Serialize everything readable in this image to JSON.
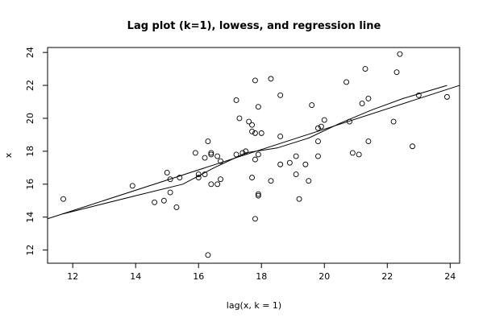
{
  "chart_data": {
    "type": "scatter",
    "title": "Lag plot (k=1), lowess, and regression line",
    "xlabel": "lag(x, k = 1)",
    "ylabel": "x",
    "xlim": [
      11.2,
      24.3
    ],
    "ylim": [
      11.2,
      24.3
    ],
    "xticks": [
      "12",
      "14",
      "16",
      "18",
      "20",
      "22",
      "24"
    ],
    "yticks": [
      "12",
      "14",
      "16",
      "18",
      "20",
      "22",
      "24"
    ],
    "points": [
      [
        11.7,
        15.1
      ],
      [
        13.9,
        15.9
      ],
      [
        14.6,
        14.9
      ],
      [
        14.9,
        15.0
      ],
      [
        15.0,
        16.7
      ],
      [
        15.1,
        16.3
      ],
      [
        15.1,
        15.5
      ],
      [
        15.3,
        14.6
      ],
      [
        15.4,
        16.4
      ],
      [
        15.9,
        17.9
      ],
      [
        16.0,
        16.6
      ],
      [
        16.0,
        16.4
      ],
      [
        16.2,
        16.6
      ],
      [
        16.2,
        17.6
      ],
      [
        16.3,
        18.6
      ],
      [
        16.3,
        11.7
      ],
      [
        16.4,
        17.8
      ],
      [
        16.4,
        17.9
      ],
      [
        16.4,
        16.0
      ],
      [
        16.6,
        16.0
      ],
      [
        16.6,
        17.7
      ],
      [
        16.7,
        17.4
      ],
      [
        16.7,
        16.3
      ],
      [
        17.2,
        21.1
      ],
      [
        17.2,
        17.8
      ],
      [
        17.3,
        20.0
      ],
      [
        17.4,
        17.9
      ],
      [
        17.5,
        18.0
      ],
      [
        17.6,
        19.8
      ],
      [
        17.7,
        19.2
      ],
      [
        17.7,
        19.6
      ],
      [
        17.7,
        16.4
      ],
      [
        17.8,
        22.3
      ],
      [
        17.8,
        19.1
      ],
      [
        17.8,
        17.5
      ],
      [
        17.8,
        13.9
      ],
      [
        17.9,
        20.7
      ],
      [
        17.9,
        17.8
      ],
      [
        17.9,
        15.4
      ],
      [
        17.9,
        15.3
      ],
      [
        18.0,
        19.1
      ],
      [
        18.3,
        22.4
      ],
      [
        18.3,
        16.2
      ],
      [
        18.6,
        21.4
      ],
      [
        18.6,
        18.9
      ],
      [
        18.6,
        17.2
      ],
      [
        18.9,
        17.3
      ],
      [
        19.1,
        17.7
      ],
      [
        19.1,
        16.6
      ],
      [
        19.2,
        15.1
      ],
      [
        19.4,
        17.2
      ],
      [
        19.5,
        16.2
      ],
      [
        19.6,
        20.8
      ],
      [
        19.8,
        19.4
      ],
      [
        19.8,
        18.6
      ],
      [
        19.8,
        17.7
      ],
      [
        19.9,
        19.5
      ],
      [
        20.0,
        19.9
      ],
      [
        20.7,
        22.2
      ],
      [
        20.8,
        19.8
      ],
      [
        20.9,
        17.9
      ],
      [
        21.1,
        17.8
      ],
      [
        21.2,
        20.9
      ],
      [
        21.3,
        23.0
      ],
      [
        21.4,
        21.2
      ],
      [
        21.4,
        18.6
      ],
      [
        22.2,
        19.8
      ],
      [
        22.3,
        22.8
      ],
      [
        22.4,
        23.9
      ],
      [
        22.8,
        18.3
      ],
      [
        23.0,
        21.4
      ],
      [
        23.9,
        21.3
      ]
    ],
    "regression_line": [
      [
        11.2,
        13.9
      ],
      [
        24.3,
        22.0
      ]
    ],
    "lowess_line": [
      [
        11.7,
        14.2
      ],
      [
        14.0,
        15.3
      ],
      [
        15.5,
        16.0
      ],
      [
        16.5,
        17.0
      ],
      [
        17.5,
        17.9
      ],
      [
        18.5,
        18.2
      ],
      [
        19.5,
        18.8
      ],
      [
        20.5,
        19.7
      ],
      [
        21.5,
        20.5
      ],
      [
        22.5,
        21.2
      ],
      [
        23.9,
        22.0
      ]
    ],
    "grid": false,
    "legend": "none"
  }
}
